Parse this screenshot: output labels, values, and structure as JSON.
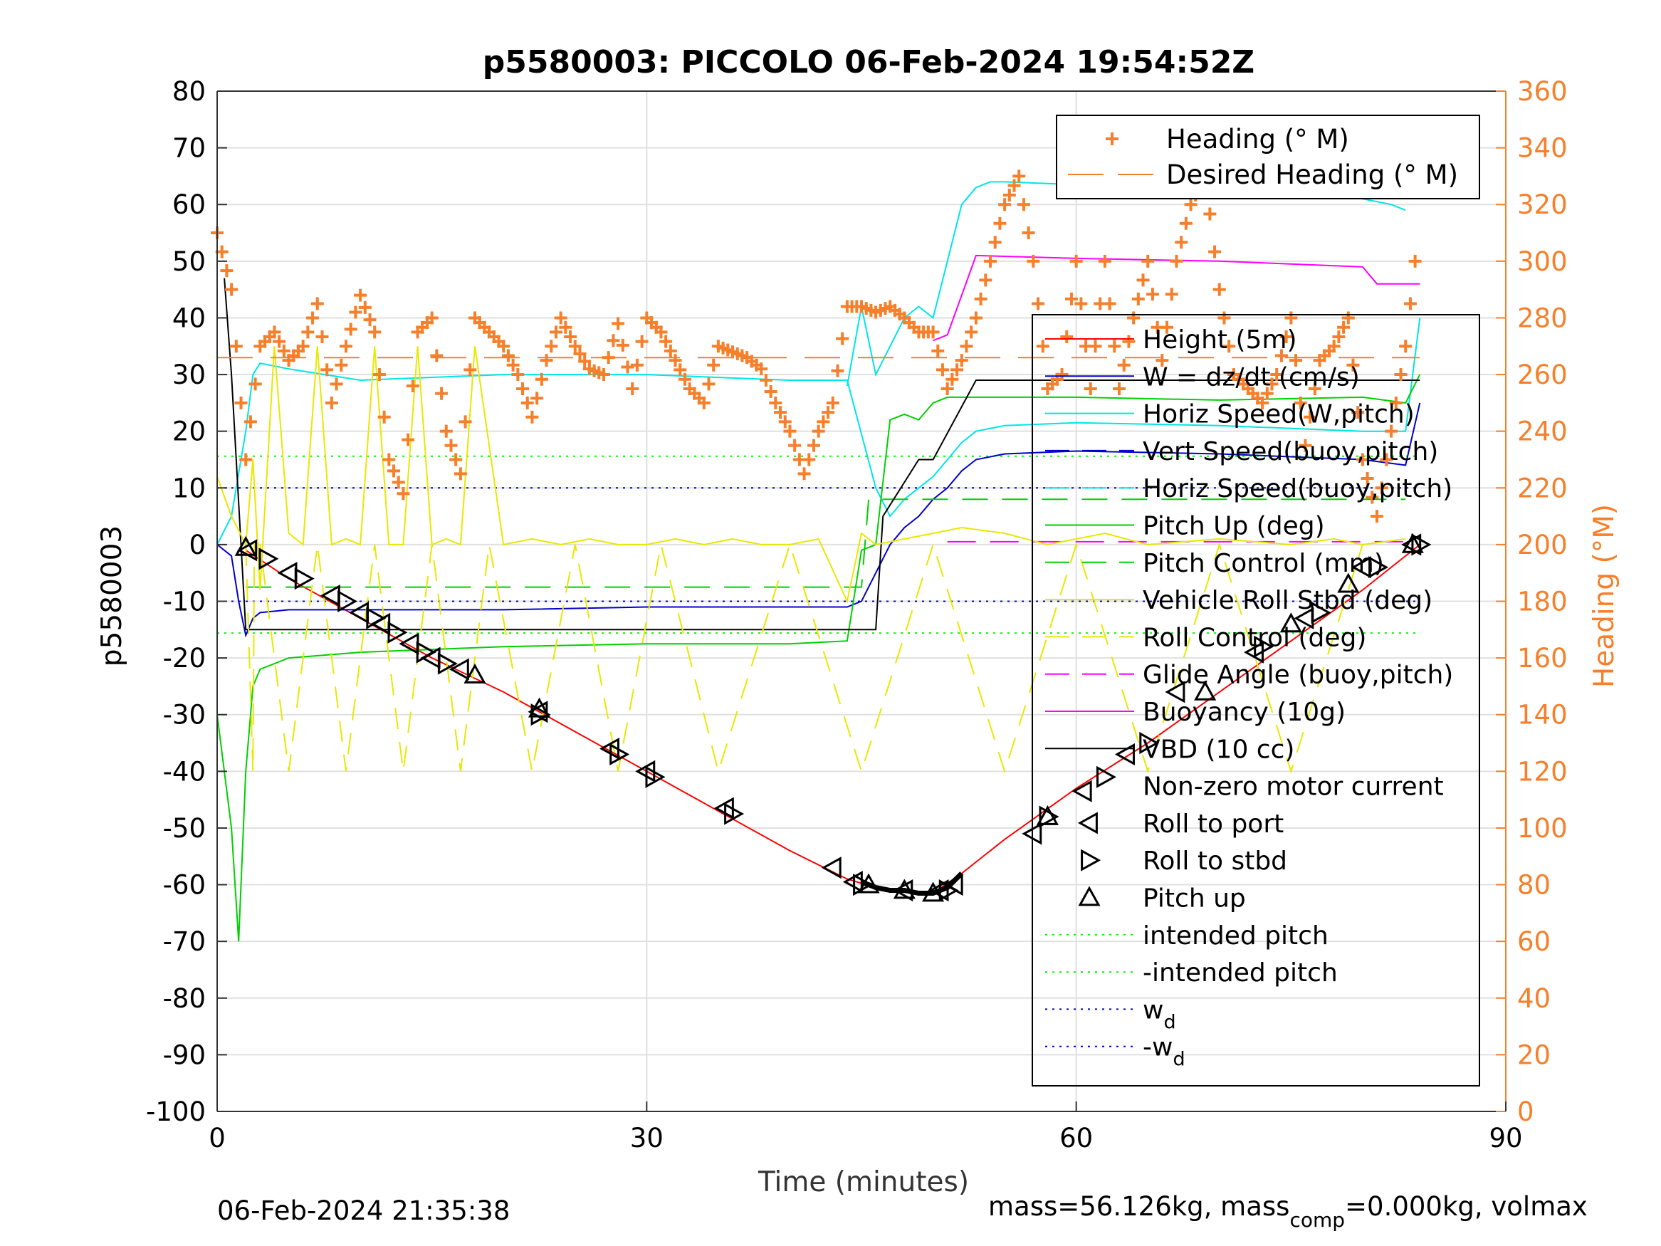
{
  "chart_data": {
    "type": "line",
    "title": "p5580003: PICCOLO 06-Feb-2024 19:54:52Z",
    "xlabel": "Time (minutes)",
    "ylabel_left": "p5580003",
    "ylabel_right": "Heading (°M)",
    "xlim": [
      0,
      90
    ],
    "ylim_left": [
      -100,
      80
    ],
    "ylim_right": [
      0,
      360
    ],
    "xticks": [
      "0",
      "30",
      "60",
      "90"
    ],
    "yticks_left": [
      "80",
      "70",
      "60",
      "50",
      "40",
      "30",
      "20",
      "10",
      "0",
      "-10",
      "-20",
      "-30",
      "-40",
      "-50",
      "-60",
      "-70",
      "-80",
      "-90",
      "-100"
    ],
    "yticks_right": [
      "360",
      "340",
      "320",
      "300",
      "280",
      "260",
      "240",
      "220",
      "200",
      "180",
      "160",
      "140",
      "120",
      "100",
      "80",
      "60",
      "40",
      "20",
      "0"
    ],
    "grid": true,
    "footer_left": "06-Feb-2024 21:35:38",
    "footer_right_parts": [
      "mass=56.126kg, mass",
      "comp",
      "=0.000kg, volmax"
    ],
    "legend_top": [
      {
        "name": "Heading (° M)",
        "color": "#f77f2a",
        "style": "plus"
      },
      {
        "name": "Desired Heading (° M)",
        "color": "#f77f2a",
        "style": "dash"
      }
    ],
    "legend_main": [
      {
        "name": "Height (5m)",
        "color": "#ff0000",
        "style": "solid"
      },
      {
        "name": "W = dz/dt (cm/s)",
        "color": "#0000cc",
        "style": "solid"
      },
      {
        "name": "Horiz Speed(W,pitch)",
        "color": "#00e5e5",
        "style": "solid"
      },
      {
        "name": "Vert Speed(buoy,pitch)",
        "color": "#0000cc",
        "style": "dash"
      },
      {
        "name": "Horiz Speed(buoy,pitch)",
        "color": "#00e5e5",
        "style": "dash"
      },
      {
        "name": "Pitch Up (deg)",
        "color": "#00d000",
        "style": "solid"
      },
      {
        "name": "Pitch Control (mm)",
        "color": "#00d000",
        "style": "dash"
      },
      {
        "name": "Vehicle Roll Stbd (deg)",
        "color": "#e8e800",
        "style": "solid"
      },
      {
        "name": "Roll Control (deg)",
        "color": "#e8e800",
        "style": "dash"
      },
      {
        "name": "Glide Angle (buoy,pitch)",
        "color": "#ff00ff",
        "style": "dash"
      },
      {
        "name": "Buoyancy (10g)",
        "color": "#ff00ff",
        "style": "solid"
      },
      {
        "name": "VBD (10 cc)",
        "color": "#000000",
        "style": "solid"
      },
      {
        "name": "Non-zero motor current",
        "color": "#000000",
        "style": "thick"
      },
      {
        "name": "Roll to port",
        "color": "#000000",
        "style": "tri-left"
      },
      {
        "name": "Roll to stbd",
        "color": "#000000",
        "style": "tri-right"
      },
      {
        "name": "Pitch up",
        "color": "#000000",
        "style": "tri-up"
      },
      {
        "name": "intended pitch",
        "color": "#00ff00",
        "style": "dot"
      },
      {
        "name": "-intended pitch",
        "color": "#00ff00",
        "style": "dot"
      },
      {
        "name": "w",
        "sub": "d",
        "color": "#0000cc",
        "style": "dot"
      },
      {
        "name": "-w",
        "sub": "d",
        "color": "#0000cc",
        "style": "dot"
      }
    ],
    "series": [
      {
        "name": "Height (5m)",
        "axis": "left",
        "color": "#ff0000",
        "x": [
          2,
          5,
          10,
          15,
          20,
          25,
          30,
          35,
          40,
          44,
          46,
          48,
          50,
          52,
          55,
          60,
          65,
          70,
          75,
          80,
          84
        ],
        "y": [
          -1,
          -6,
          -13,
          -20,
          -26,
          -33,
          -40,
          -47,
          -54,
          -59,
          -60.5,
          -61,
          -61.5,
          -58,
          -52,
          -43,
          -35,
          -26,
          -17,
          -8,
          0
        ]
      },
      {
        "name": "W = dz/dt (cm/s)",
        "axis": "left",
        "color": "#0000cc",
        "x": [
          0,
          1,
          1.5,
          2,
          2.5,
          3,
          5,
          10,
          20,
          30,
          40,
          44,
          45,
          46,
          47,
          48,
          49,
          50,
          51,
          52,
          53,
          55,
          60,
          70,
          80,
          83,
          84
        ],
        "y": [
          0,
          -2,
          -10,
          -16,
          -13,
          -12,
          -11.5,
          -11.5,
          -11.5,
          -11,
          -11,
          -11,
          -10,
          -5,
          0,
          3,
          5,
          8,
          10,
          13,
          15,
          16,
          16.5,
          16,
          15,
          14,
          25
        ]
      },
      {
        "name": "Horiz Speed(W,pitch)",
        "axis": "left",
        "color": "#00e5e5",
        "x": [
          0,
          1,
          2,
          2.5,
          3,
          5,
          10,
          20,
          30,
          40,
          44,
          46,
          47,
          48,
          49,
          50,
          51,
          52,
          53,
          55,
          60,
          70,
          80,
          83,
          84
        ],
        "y": [
          0,
          5,
          20,
          30,
          32,
          31,
          29,
          30,
          30,
          29,
          29,
          10,
          5,
          8,
          10,
          12,
          15,
          18,
          20,
          21,
          21.5,
          21,
          20,
          20,
          40
        ]
      },
      {
        "name": "Horiz Speed(buoy,pitch)",
        "axis": "left",
        "color": "#00e5e5",
        "x": [
          44,
          45,
          46,
          47,
          48,
          49,
          50,
          51,
          52,
          53,
          54,
          55,
          60,
          70,
          80,
          82,
          83
        ],
        "y": [
          28,
          42,
          30,
          35,
          40,
          42,
          40,
          50,
          60,
          63,
          64,
          64,
          63.5,
          63,
          61,
          60,
          59
        ]
      },
      {
        "name": "Pitch Up (deg)",
        "axis": "left",
        "color": "#00d000",
        "x": [
          0,
          1,
          1.5,
          2,
          2.5,
          3,
          5,
          10,
          20,
          30,
          40,
          44,
          45,
          46,
          47,
          48,
          49,
          50,
          51,
          52,
          53,
          55,
          60,
          70,
          80,
          83,
          84
        ],
        "y": [
          -30,
          -50,
          -70,
          -40,
          -25,
          -22,
          -20,
          -19,
          -18,
          -17.5,
          -17.5,
          -17,
          -1,
          0,
          22,
          23,
          22,
          25,
          26,
          26,
          26,
          26,
          26,
          25.5,
          26,
          25,
          30
        ]
      },
      {
        "name": "Pitch Control (mm)",
        "axis": "left",
        "color": "#00d000",
        "x": [
          2,
          45,
          45.5,
          83
        ],
        "y": [
          -7.5,
          -7.5,
          8,
          8
        ]
      },
      {
        "name": "Buoyancy (10g)",
        "axis": "left",
        "color": "#ff00ff",
        "x": [
          50,
          51,
          53,
          60,
          70,
          80,
          81,
          84
        ],
        "y": [
          36,
          37,
          51,
          50.5,
          50,
          49,
          46,
          46
        ]
      },
      {
        "name": "Glide Angle (buoy,pitch)",
        "axis": "left",
        "color": "#ff00ff",
        "x": [
          51,
          83
        ],
        "y": [
          0.5,
          0.5
        ]
      },
      {
        "name": "VBD (10 cc)",
        "axis": "left",
        "color": "#000000",
        "x": [
          0.5,
          1,
          2,
          46,
          46.5,
          49,
          50,
          53,
          84
        ],
        "y": [
          47,
          30,
          -15,
          -15,
          5,
          15,
          15,
          29,
          29
        ]
      },
      {
        "name": "Vehicle Roll Stbd (deg)",
        "axis": "left",
        "color": "#e8e800",
        "x": [
          0,
          1,
          2,
          2.5,
          3,
          4,
          5,
          6,
          7,
          8,
          9,
          10,
          11,
          12,
          13,
          14,
          15,
          16,
          17,
          18,
          20,
          22,
          24,
          26,
          28,
          30,
          32,
          34,
          36,
          38,
          40,
          42,
          44,
          45,
          46,
          48,
          50,
          52,
          55,
          58,
          60,
          62,
          65,
          70,
          75,
          78,
          80,
          83
        ],
        "y": [
          12,
          5,
          0,
          15,
          -8,
          35,
          2,
          0,
          35,
          0,
          1,
          0,
          35,
          0,
          0,
          35,
          0,
          1,
          0,
          35,
          0,
          1,
          0,
          1,
          0,
          0,
          1,
          0,
          1,
          0,
          0,
          1,
          -10,
          2,
          0,
          1,
          2,
          3,
          2,
          0,
          1,
          2,
          0,
          1,
          0,
          1,
          0,
          1
        ]
      },
      {
        "name": "Roll Control (deg)",
        "axis": "left",
        "color": "#e8e800",
        "x": [
          2,
          2.5,
          2.6,
          3,
          5,
          7,
          9,
          11,
          13,
          15,
          17,
          19,
          22,
          25,
          28,
          31,
          35,
          40,
          45,
          50,
          55,
          60,
          65,
          70,
          75,
          80
        ],
        "y": [
          0,
          -40,
          0,
          0,
          -40,
          0,
          -40,
          0,
          -40,
          0,
          -40,
          0,
          -40,
          0,
          -40,
          0,
          -40,
          0,
          -40,
          0,
          -40,
          0,
          -40,
          0,
          -40,
          0
        ]
      },
      {
        "name": "Desired Heading (° M)",
        "axis": "right",
        "color": "#f77f2a",
        "x": [
          0,
          84
        ],
        "y": [
          266,
          266
        ]
      },
      {
        "name": "Heading (° M)",
        "axis": "right",
        "color": "#f77f2a",
        "x": [
          0,
          1,
          2,
          3,
          4,
          5,
          6,
          7,
          8,
          9,
          10,
          11,
          12,
          13,
          14,
          15,
          16,
          17,
          18,
          19,
          20,
          21,
          22,
          23,
          24,
          25,
          26,
          27,
          28,
          29,
          30,
          31,
          32,
          33,
          34,
          35,
          36,
          37,
          38,
          39,
          40,
          41,
          42,
          43,
          44,
          45,
          46,
          47,
          48,
          49,
          50,
          51,
          52,
          53,
          54,
          55,
          56,
          57,
          58,
          59,
          60,
          61,
          62,
          63,
          64,
          65,
          66,
          67,
          68,
          69,
          70,
          71,
          72,
          73,
          74,
          75,
          76,
          77,
          78,
          79,
          80,
          81,
          82,
          83,
          84
        ],
        "y": [
          310,
          290,
          230,
          270,
          275,
          265,
          270,
          285,
          250,
          270,
          288,
          275,
          230,
          218,
          275,
          280,
          240,
          225,
          280,
          275,
          270,
          260,
          245,
          265,
          280,
          270,
          262,
          260,
          278,
          255,
          280,
          275,
          265,
          255,
          250,
          270,
          268,
          266,
          262,
          250,
          240,
          225,
          240,
          250,
          284,
          284,
          282,
          284,
          280,
          275,
          275,
          255,
          265,
          280,
          300,
          320,
          330,
          300,
          255,
          260,
          300,
          255,
          300,
          255,
          280,
          300,
          265,
          300,
          320,
          330,
          290,
          260,
          255,
          250,
          260,
          280,
          235,
          265,
          270,
          280,
          230,
          210,
          240,
          270,
          315
        ]
      },
      {
        "name": "Non-zero motor current",
        "axis": "left",
        "color": "#000000",
        "x": [
          45,
          46,
          47,
          48,
          49,
          50,
          51,
          52
        ],
        "y": [
          -59.5,
          -60.5,
          -61,
          -61,
          -61.5,
          -61.5,
          -60.5,
          -58
        ]
      }
    ],
    "markers_roll_port": {
      "x": [
        2.2,
        5,
        8,
        10,
        11.5,
        13.5,
        15,
        17,
        22.5,
        27.5,
        30,
        35.5,
        43,
        44.5,
        48,
        50.5,
        51.5,
        57,
        60.5,
        63.5,
        67,
        72.5,
        76,
        80,
        83.5
      ],
      "y": [
        -1,
        -5,
        -9,
        -12,
        -14,
        -17.5,
        -20,
        -22,
        -29.5,
        -36,
        -40,
        -46.5,
        -57,
        -59.5,
        -61,
        -61,
        -60,
        -51,
        -43.5,
        -37,
        -26,
        -19,
        -13,
        -4,
        0
      ]
    },
    "markers_roll_stbd": {
      "x": [
        3.5,
        6,
        9,
        11,
        12.5,
        14.5,
        16,
        22.5,
        28,
        30.5,
        36,
        45,
        51,
        58,
        62,
        65,
        73,
        77,
        81,
        84
      ],
      "y": [
        -2.5,
        -6,
        -10,
        -13,
        -15.5,
        -19,
        -21,
        -30,
        -37,
        -41,
        -47.5,
        -60,
        -61,
        -48,
        -41,
        -35,
        -18,
        -12,
        -4,
        0
      ]
    },
    "markers_pitch_up": {
      "x": [
        2,
        18,
        22.5,
        45.5,
        48,
        50,
        58,
        69,
        75,
        79,
        83.5
      ],
      "y": [
        -0.5,
        -23,
        -29,
        -60,
        -61,
        -61.5,
        -48,
        -26,
        -14,
        -7,
        0
      ]
    },
    "hlines": [
      {
        "name": "intended pitch",
        "y": 15.6,
        "color": "#00ff00"
      },
      {
        "name": "-intended pitch",
        "y": -15.6,
        "color": "#00ff00"
      },
      {
        "name": "w_d",
        "y": 10,
        "color": "#0000cc"
      },
      {
        "name": "-w_d",
        "y": -10,
        "color": "#0000cc"
      }
    ]
  }
}
